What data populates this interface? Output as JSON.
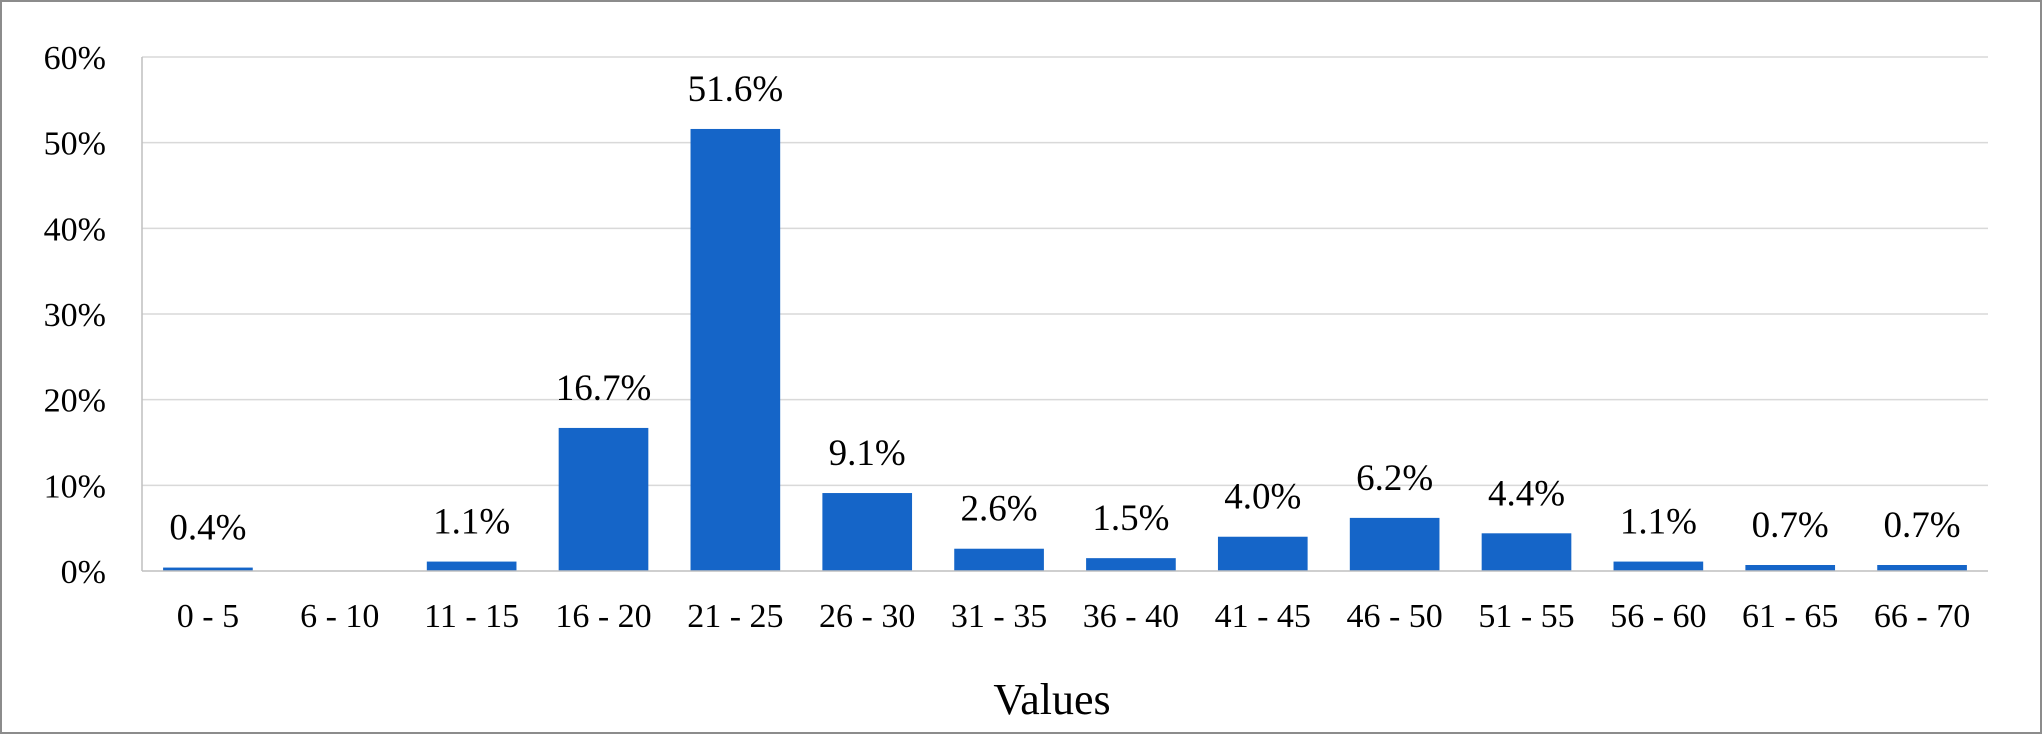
{
  "chart_data": {
    "type": "bar",
    "categories": [
      "0 - 5",
      "6 - 10",
      "11 - 15",
      "16 - 20",
      "21 - 25",
      "26 - 30",
      "31 - 35",
      "36 - 40",
      "41 - 45",
      "46 - 50",
      "51 - 55",
      "56 - 60",
      "61 - 65",
      "66 - 70"
    ],
    "values": [
      0.4,
      0,
      1.1,
      16.7,
      51.6,
      9.1,
      2.6,
      1.5,
      4.0,
      6.2,
      4.4,
      1.1,
      0.7,
      0.7
    ],
    "data_labels": [
      "0.4%",
      "",
      "1.1%",
      "16.7%",
      "51.6%",
      "9.1%",
      "2.6%",
      "1.5%",
      "4.0%",
      "6.2%",
      "4.4%",
      "1.1%",
      "0.7%",
      "0.7%"
    ],
    "title": "",
    "xlabel": "Values",
    "ylabel": "",
    "ylim": [
      0,
      60
    ],
    "yticks": [
      0,
      10,
      20,
      30,
      40,
      50,
      60
    ],
    "ytick_labels": [
      "0%",
      "10%",
      "20%",
      "30%",
      "40%",
      "50%",
      "60%"
    ],
    "grid": true,
    "legend": "none",
    "bar_color": "#1565C8",
    "grid_color": "#d9d9d9",
    "axis_color": "#bfbfbf"
  }
}
